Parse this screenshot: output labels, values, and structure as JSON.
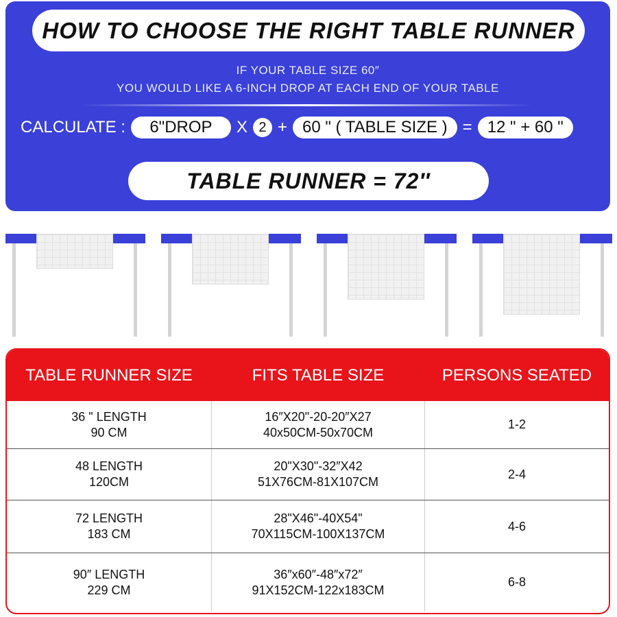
{
  "colors": {
    "blue": "#3a40d8",
    "red": "#e8141a"
  },
  "header": {
    "title": "HOW TO CHOOSE THE RIGHT TABLE RUNNER",
    "line1": "IF YOUR TABLE SIZE 60″",
    "line2": "YOU WOULD LIKE A 6-INCH DROP AT EACH END OF YOUR TABLE"
  },
  "calc": {
    "label": "CALCULATE :",
    "drop": "6\"DROP",
    "times": "X",
    "two": "2",
    "plus": "+",
    "table": "60 \" ( TABLE SIZE )",
    "equals": "=",
    "sum": "12 \" + 60 \""
  },
  "result": "TABLE RUNNER = 72″",
  "table": {
    "headers": [
      "TABLE RUNNER SIZE",
      "FITS TABLE SIZE",
      "PERSONS SEATED"
    ],
    "rows": [
      {
        "size": [
          "36 \" LENGTH",
          "90 CM"
        ],
        "fits": [
          "16″X20\"-20-20″X27",
          "40x50CM-50x70CM"
        ],
        "persons": "1-2"
      },
      {
        "size": [
          "48 LENGTH",
          "120CM"
        ],
        "fits": [
          "20\"X30\"-32″X42",
          "51X76CM-81X107CM"
        ],
        "persons": "2-4"
      },
      {
        "size": [
          "72 LENGTH",
          "183 CM"
        ],
        "fits": [
          "28\"X46\"-40X54\"",
          "70X115CM-100X137CM"
        ],
        "persons": "4-6"
      },
      {
        "size": [
          "90″ LENGTH",
          "229 CM"
        ],
        "fits": [
          "36″x60″-48″x72″",
          "91X152CM-122x183CM"
        ],
        "persons": "6-8"
      }
    ]
  }
}
